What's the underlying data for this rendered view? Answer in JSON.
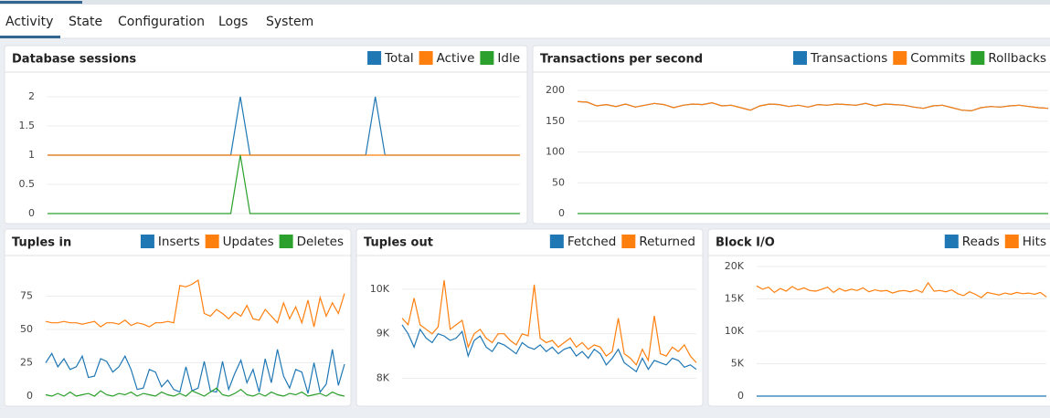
{
  "tabs": [
    "Activity",
    "State",
    "Configuration",
    "Logs",
    "System"
  ],
  "chart_data": [
    {
      "type": "line",
      "title": "Database sessions",
      "ylim": [
        0,
        2.25
      ],
      "yticks": [
        0,
        0.5,
        1,
        1.5,
        2
      ],
      "grid": true,
      "series": [
        {
          "name": "Total",
          "color": "#1f77b4",
          "values": [
            1,
            1,
            1,
            1,
            1,
            1,
            1,
            1,
            1,
            1,
            1,
            1,
            1,
            1,
            1,
            1,
            1,
            1,
            1,
            1,
            2,
            1,
            1,
            1,
            1,
            1,
            1,
            1,
            1,
            1,
            1,
            1,
            1,
            1,
            2,
            1,
            1,
            1,
            1,
            1,
            1,
            1,
            1,
            1,
            1,
            1,
            1,
            1,
            1,
            1
          ]
        },
        {
          "name": "Active",
          "color": "#ff7f0e",
          "values": [
            1,
            1,
            1,
            1,
            1,
            1,
            1,
            1,
            1,
            1,
            1,
            1,
            1,
            1,
            1,
            1,
            1,
            1,
            1,
            1,
            1,
            1,
            1,
            1,
            1,
            1,
            1,
            1,
            1,
            1,
            1,
            1,
            1,
            1,
            1,
            1,
            1,
            1,
            1,
            1,
            1,
            1,
            1,
            1,
            1,
            1,
            1,
            1,
            1,
            1
          ]
        },
        {
          "name": "Idle",
          "color": "#2ca02c",
          "values": [
            0,
            0,
            0,
            0,
            0,
            0,
            0,
            0,
            0,
            0,
            0,
            0,
            0,
            0,
            0,
            0,
            0,
            0,
            0,
            0,
            1,
            0,
            0,
            0,
            0,
            0,
            0,
            0,
            0,
            0,
            0,
            0,
            0,
            0,
            0,
            0,
            0,
            0,
            0,
            0,
            0,
            0,
            0,
            0,
            0,
            0,
            0,
            0,
            0,
            0
          ]
        }
      ]
    },
    {
      "type": "line",
      "title": "Transactions per second",
      "ylim": [
        0,
        215
      ],
      "yticks": [
        0,
        50,
        100,
        150,
        200
      ],
      "grid": true,
      "series": [
        {
          "name": "Transactions",
          "color": "#1f77b4",
          "values": [
            182,
            181,
            175,
            177,
            174,
            178,
            173,
            176,
            179,
            177,
            172,
            176,
            178,
            177,
            180,
            175,
            176,
            172,
            168,
            175,
            178,
            177,
            174,
            176,
            173,
            177,
            176,
            178,
            177,
            176,
            179,
            175,
            178,
            177,
            176,
            173,
            171,
            175,
            176,
            172,
            168,
            167,
            172,
            174,
            173,
            175,
            176,
            174,
            172,
            171
          ]
        },
        {
          "name": "Commits",
          "color": "#ff7f0e",
          "values": [
            182,
            181,
            175,
            177,
            174,
            178,
            173,
            176,
            179,
            177,
            172,
            176,
            178,
            177,
            180,
            175,
            176,
            172,
            168,
            175,
            178,
            177,
            174,
            176,
            173,
            177,
            176,
            178,
            177,
            176,
            179,
            175,
            178,
            177,
            176,
            173,
            171,
            175,
            176,
            172,
            168,
            167,
            172,
            174,
            173,
            175,
            176,
            174,
            172,
            171
          ]
        },
        {
          "name": "Rollbacks",
          "color": "#2ca02c",
          "values": [
            0,
            0,
            0,
            0,
            0,
            0,
            0,
            0,
            0,
            0,
            0,
            0,
            0,
            0,
            0,
            0,
            0,
            0,
            0,
            0,
            0,
            0,
            0,
            0,
            0,
            0,
            0,
            0,
            0,
            0,
            0,
            0,
            0,
            0,
            0,
            0,
            0,
            0,
            0,
            0,
            0,
            0,
            0,
            0,
            0,
            0,
            0,
            0,
            0,
            0
          ]
        }
      ]
    },
    {
      "type": "line",
      "title": "Tuples in",
      "ylim": [
        0,
        100
      ],
      "yticks": [
        0,
        25,
        50,
        75
      ],
      "grid": true,
      "series": [
        {
          "name": "Inserts",
          "color": "#1f77b4",
          "values": [
            25,
            32,
            22,
            28,
            20,
            22,
            30,
            14,
            15,
            28,
            26,
            18,
            22,
            30,
            20,
            5,
            6,
            20,
            18,
            7,
            12,
            5,
            3,
            22,
            4,
            6,
            26,
            4,
            3,
            26,
            5,
            17,
            27,
            10,
            20,
            3,
            28,
            10,
            35,
            15,
            6,
            20,
            18,
            2,
            25,
            3,
            9,
            35,
            8,
            24
          ]
        },
        {
          "name": "Updates",
          "color": "#ff7f0e",
          "values": [
            56,
            55,
            55,
            56,
            55,
            55,
            54,
            55,
            56,
            52,
            55,
            55,
            54,
            57,
            53,
            55,
            54,
            52,
            55,
            55,
            56,
            55,
            83,
            82,
            84,
            87,
            62,
            60,
            65,
            62,
            58,
            63,
            60,
            68,
            58,
            57,
            65,
            60,
            55,
            70,
            58,
            67,
            55,
            72,
            52,
            74,
            60,
            70,
            62,
            77
          ]
        },
        {
          "name": "Deletes",
          "color": "#2ca02c",
          "values": [
            1,
            0,
            2,
            0,
            3,
            0,
            1,
            2,
            0,
            4,
            1,
            0,
            2,
            1,
            3,
            0,
            2,
            1,
            0,
            3,
            1,
            0,
            2,
            0,
            4,
            2,
            0,
            3,
            6,
            1,
            0,
            2,
            5,
            1,
            0,
            2,
            0,
            3,
            1,
            0,
            2,
            1,
            3,
            0,
            1,
            2,
            0,
            3,
            1,
            0
          ]
        }
      ]
    },
    {
      "type": "line",
      "title": "Tuples out",
      "ylim": [
        7600,
        10550
      ],
      "yticks": [
        {
          "value": 8000,
          "label": "8K"
        },
        {
          "value": 9000,
          "label": "9K"
        },
        {
          "value": 10000,
          "label": "10K"
        }
      ],
      "grid": true,
      "series": [
        {
          "name": "Fetched",
          "color": "#1f77b4",
          "values": [
            9200,
            9000,
            8700,
            9100,
            8900,
            8800,
            9000,
            8950,
            8850,
            8900,
            9050,
            8500,
            8850,
            8950,
            8700,
            8600,
            8800,
            8750,
            8650,
            8550,
            8800,
            8700,
            8650,
            8750,
            8600,
            8700,
            8550,
            8650,
            8700,
            8500,
            8600,
            8450,
            8650,
            8550,
            8300,
            8450,
            8650,
            8350,
            8250,
            8150,
            8450,
            8200,
            8400,
            8350,
            8300,
            8450,
            8400,
            8250,
            8300,
            8200
          ]
        },
        {
          "name": "Returned",
          "color": "#ff7f0e",
          "values": [
            9350,
            9200,
            9800,
            9200,
            9100,
            9000,
            9150,
            10200,
            9100,
            9200,
            9300,
            8700,
            9000,
            9100,
            8900,
            8800,
            9000,
            9000,
            8850,
            8750,
            9000,
            8950,
            10100,
            8900,
            8800,
            8850,
            8700,
            8800,
            8900,
            8700,
            8800,
            8650,
            8750,
            8700,
            8500,
            8600,
            9350,
            8550,
            8450,
            8300,
            8650,
            8400,
            9400,
            8550,
            8500,
            8700,
            8600,
            8750,
            8500,
            8350
          ]
        }
      ]
    },
    {
      "type": "line",
      "title": "Block I/O",
      "ylim": [
        0,
        20000
      ],
      "yticks": [
        0,
        {
          "value": 5000,
          "label": "5K"
        },
        {
          "value": 10000,
          "label": "10K"
        },
        {
          "value": 15000,
          "label": "15K"
        },
        {
          "value": 20000,
          "label": "20K"
        }
      ],
      "grid": true,
      "series": [
        {
          "name": "Reads",
          "color": "#1f77b4",
          "values": [
            0,
            0,
            0,
            0,
            0,
            0,
            0,
            0,
            0,
            0,
            0,
            0,
            0,
            0,
            0,
            0,
            0,
            0,
            0,
            0,
            0,
            0,
            0,
            0,
            0,
            0,
            0,
            0,
            0,
            0,
            0,
            0,
            0,
            0,
            0,
            0,
            0,
            0,
            0,
            0,
            0,
            0,
            0,
            0,
            0,
            0,
            0,
            0,
            0,
            0
          ]
        },
        {
          "name": "Hits",
          "color": "#ff7f0e",
          "values": [
            17000,
            16500,
            16800,
            16000,
            16600,
            16200,
            16900,
            16400,
            16700,
            16300,
            16200,
            16500,
            16800,
            16000,
            16600,
            16200,
            16500,
            16300,
            16700,
            16100,
            16400,
            16200,
            16300,
            15900,
            16200,
            16300,
            16100,
            16400,
            16000,
            17500,
            16200,
            16300,
            16100,
            16400,
            15800,
            15500,
            16100,
            15700,
            15200,
            16000,
            15800,
            15600,
            15900,
            15700,
            16000,
            15800,
            15900,
            15700,
            16000,
            15300
          ]
        }
      ]
    }
  ]
}
